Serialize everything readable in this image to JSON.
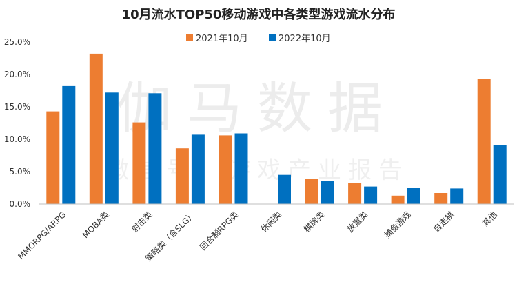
{
  "chart_data": {
    "type": "bar",
    "title": "10月流水TOP50移动游戏中各类型游戏流水分布",
    "categories": [
      "MMORPG/ARPG",
      "MOBA类",
      "射击类",
      "策略类（含SLG）",
      "回合制RPG类",
      "休闲类",
      "棋牌类",
      "放置类",
      "捕鱼游戏",
      "自走棋",
      "其他"
    ],
    "series": [
      {
        "name": "2021年10月",
        "color": "#ED7D31",
        "values": [
          14.3,
          23.2,
          12.6,
          8.6,
          10.6,
          0.0,
          3.9,
          3.3,
          1.3,
          1.7,
          19.3
        ]
      },
      {
        "name": "2022年10月",
        "color": "#0070C0",
        "values": [
          18.2,
          17.2,
          17.1,
          10.7,
          10.9,
          4.5,
          3.6,
          2.7,
          2.5,
          2.4,
          9.1
        ]
      }
    ],
    "ylim": [
      0,
      25
    ],
    "yticks": [
      "0.0%",
      "5.0%",
      "10.0%",
      "15.0%",
      "20.0%",
      "25.0%"
    ],
    "ytick_values": [
      0,
      5,
      10,
      15,
      20,
      25
    ],
    "gridlines": false,
    "legend_position": "top-center",
    "watermark": {
      "line1": "伽马数据",
      "line2": "微信号：游戏产业报告"
    }
  }
}
